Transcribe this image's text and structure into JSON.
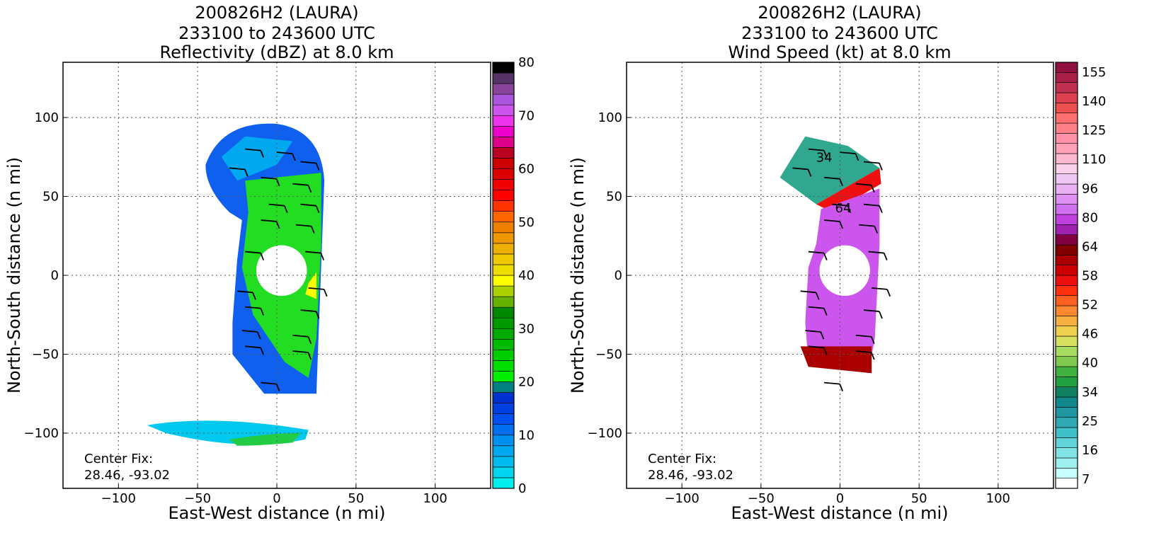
{
  "chart_data": [
    {
      "type": "heatmap",
      "title_lines": [
        "200826H2 (LAURA)",
        "233100 to 243600 UTC",
        "Reflectivity (dBZ) at 8.0 km"
      ],
      "xlabel": "East-West distance (n mi)",
      "ylabel": "North-South distance (n mi)",
      "xlim": [
        -135,
        135
      ],
      "ylim": [
        -135,
        135
      ],
      "xticks": [
        -100,
        -50,
        0,
        50,
        100
      ],
      "yticks": [
        -100,
        -50,
        0,
        50,
        100
      ],
      "grid": true,
      "annotation_lines": [
        "Center Fix:",
        "28.46, -93.02"
      ],
      "colorbar": {
        "min": 0,
        "max": 80,
        "step": 2.5,
        "tick_values": [
          0,
          10,
          20,
          30,
          40,
          50,
          60,
          70,
          80
        ],
        "colors": [
          "#00eeee",
          "#00d4ee",
          "#00bcee",
          "#00a8f0",
          "#0090f0",
          "#0070f0",
          "#0050f0",
          "#0040e0",
          "#0030d0",
          "#008080",
          "#00ee00",
          "#00dd00",
          "#00cc00",
          "#00bb00",
          "#00aa00",
          "#009900",
          "#008800",
          "#66b000",
          "#aad000",
          "#ffff00",
          "#eedd00",
          "#eec800",
          "#eeb000",
          "#ee9800",
          "#ee8000",
          "#ff6600",
          "#ff3300",
          "#ff0000",
          "#ee0000",
          "#dd0000",
          "#cc0000",
          "#bb0022",
          "#dd0088",
          "#ee00cc",
          "#ee33ee",
          "#cc55ee",
          "#aa55dd",
          "#884499",
          "#553366",
          "#000000"
        ]
      },
      "wind_barbs": true
    },
    {
      "type": "heatmap",
      "title_lines": [
        "200826H2 (LAURA)",
        "233100 to 243600 UTC",
        "Wind Speed (kt) at 8.0 km"
      ],
      "xlabel": "East-West distance (n mi)",
      "ylabel": "North-South distance (n mi)",
      "xlim": [
        -135,
        135
      ],
      "ylim": [
        -135,
        135
      ],
      "xticks": [
        -100,
        -50,
        0,
        50,
        100
      ],
      "yticks": [
        -100,
        -50,
        0,
        50,
        100
      ],
      "grid": true,
      "annotation_lines": [
        "Center Fix:",
        "28.46, -93.02"
      ],
      "contour_labels": [
        "34",
        "64"
      ],
      "colorbar": {
        "tick_labels": [
          "7",
          "16",
          "25",
          "34",
          "40",
          "46",
          "52",
          "58",
          "64",
          "80",
          "96",
          "110",
          "125",
          "140",
          "155"
        ],
        "colors": [
          "#ffffff",
          "#c8ffff",
          "#a0f0f0",
          "#80e4e4",
          "#60d4d8",
          "#40c0c8",
          "#30a8b4",
          "#2096a0",
          "#10888c",
          "#108060",
          "#20a040",
          "#40b040",
          "#80c850",
          "#a8dc60",
          "#d8e060",
          "#f0d050",
          "#f8b040",
          "#ff8830",
          "#ff6020",
          "#ff3010",
          "#ee1010",
          "#cc0000",
          "#aa0000",
          "#800000",
          "#800040",
          "#a020b0",
          "#c040e0",
          "#d070ee",
          "#e090f0",
          "#eab0f4",
          "#f0c8f4",
          "#f8d0e8",
          "#ffb8d0",
          "#ffa0b8",
          "#ff90a8",
          "#ff8088",
          "#ff7070",
          "#ee5050",
          "#dd4050",
          "#c03050",
          "#a82048",
          "#901040"
        ]
      },
      "wind_barbs": true
    }
  ]
}
